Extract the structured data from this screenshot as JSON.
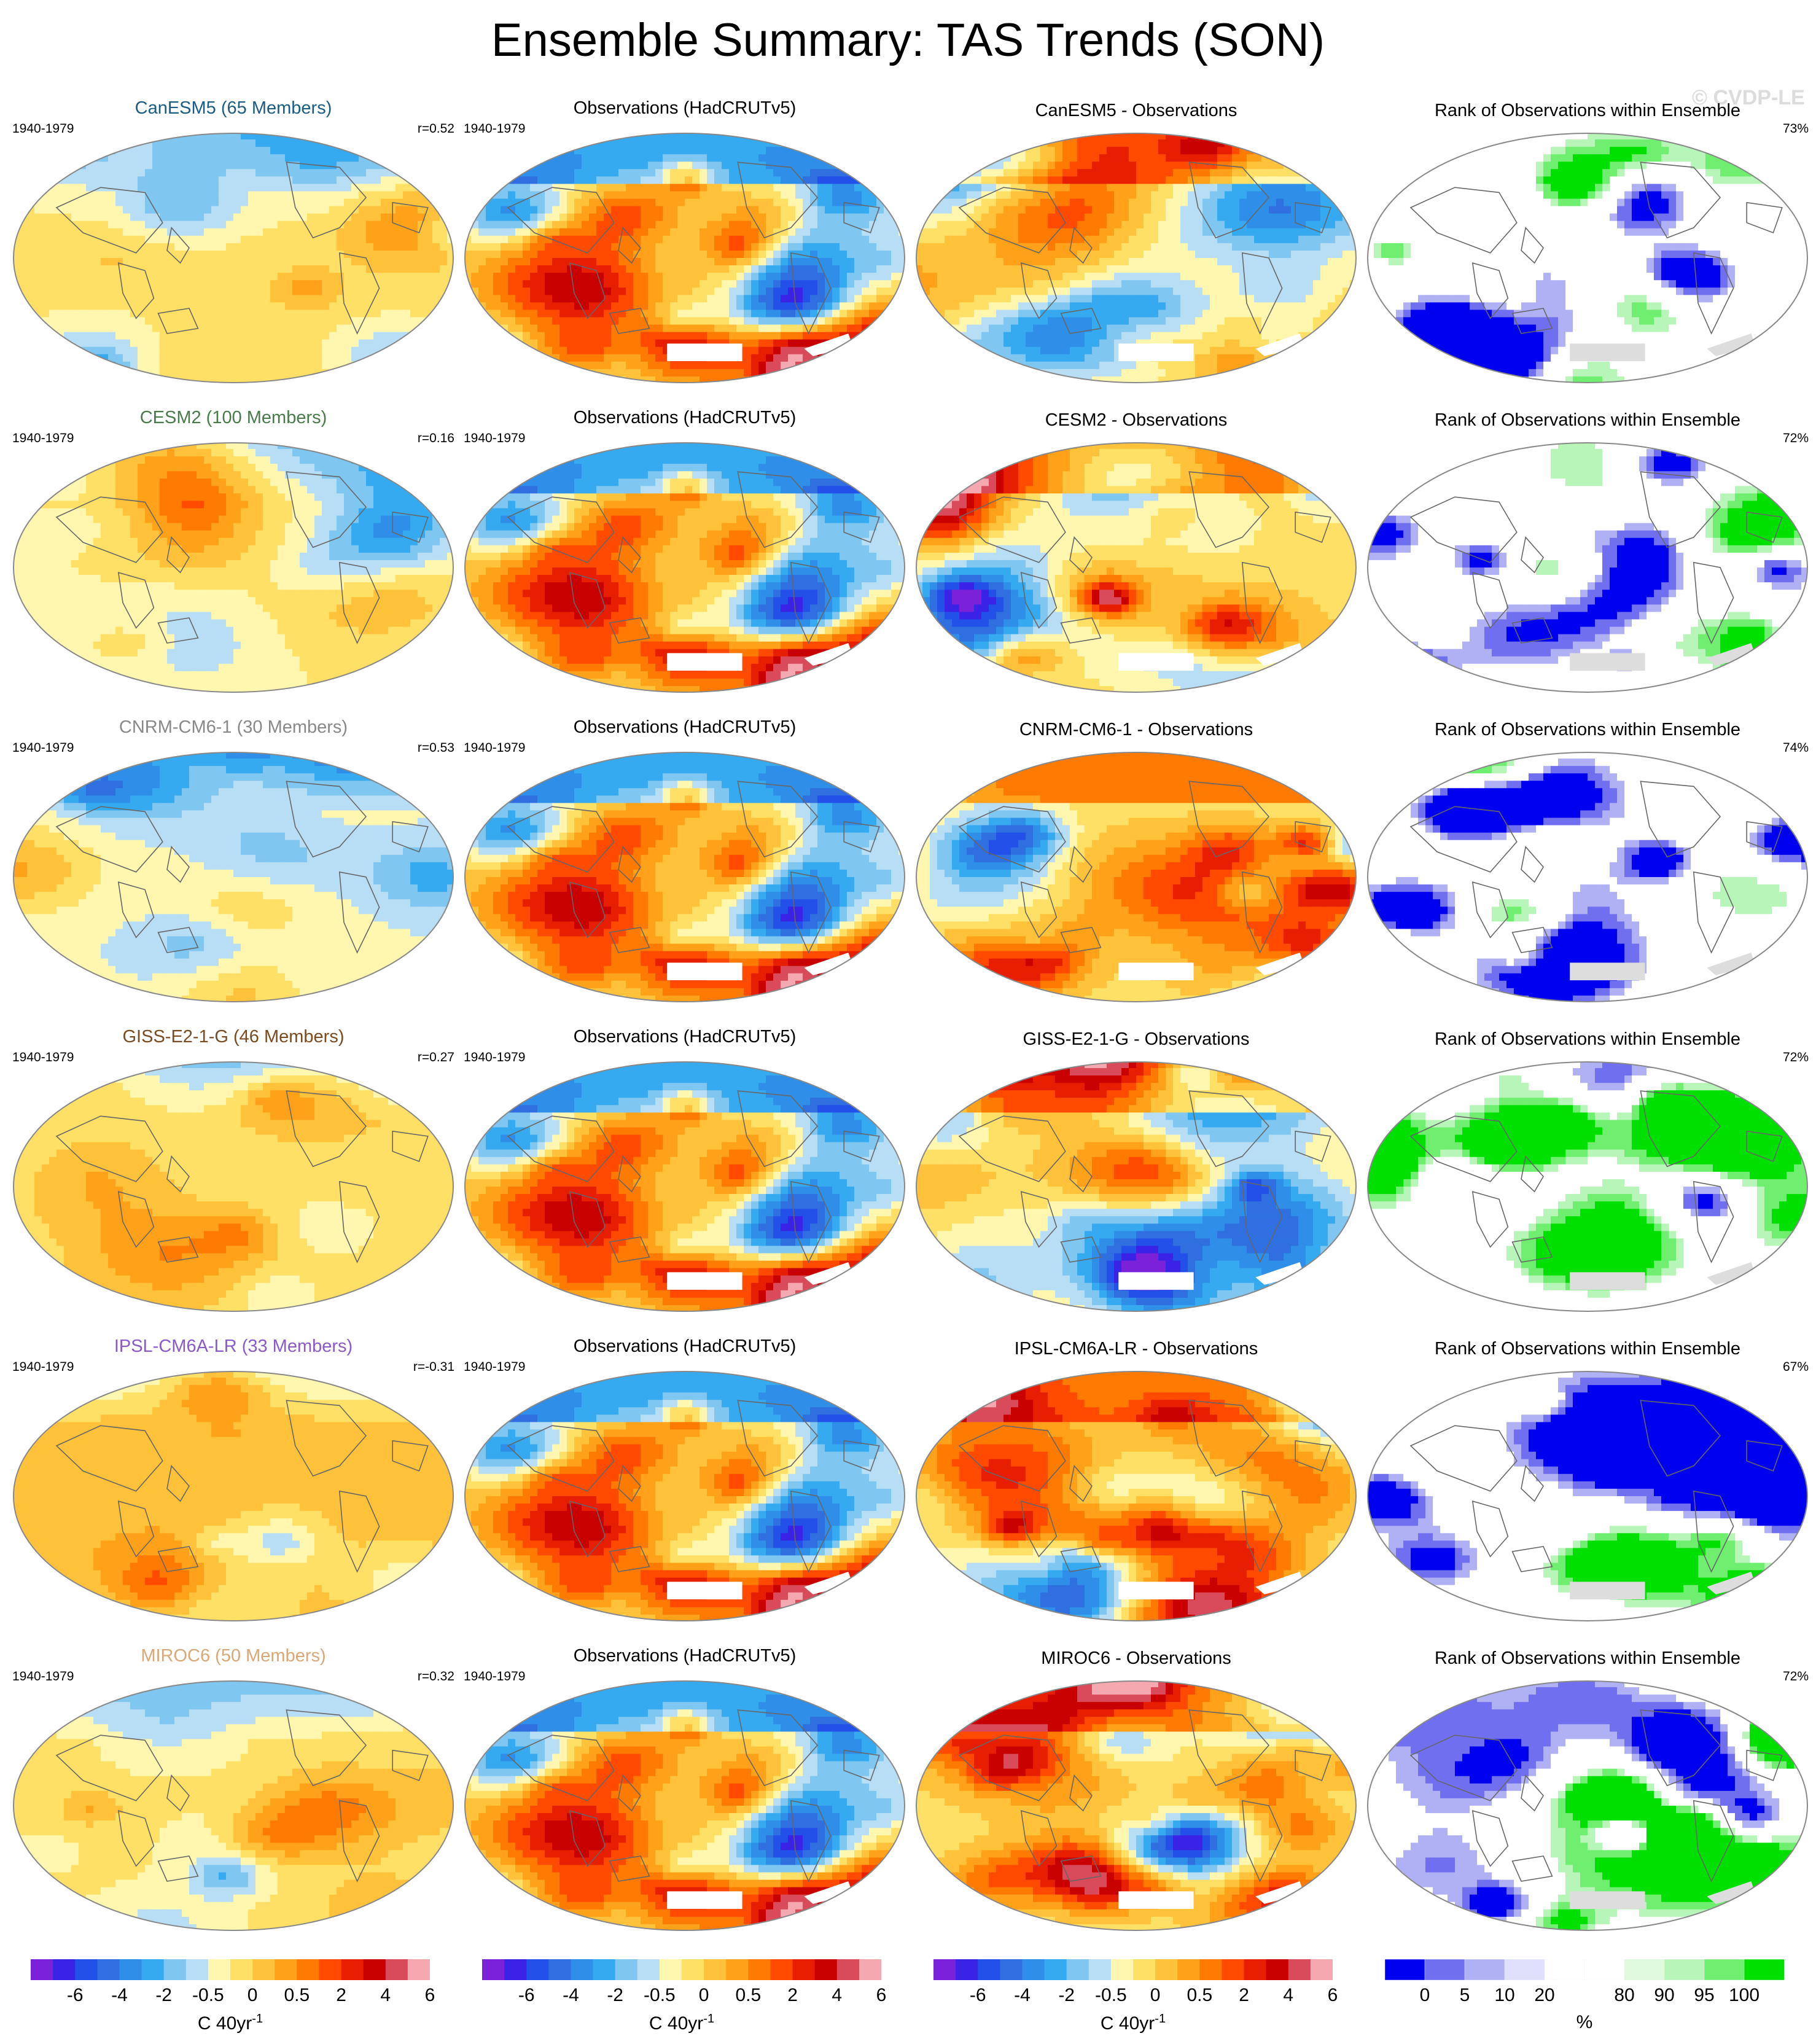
{
  "figure": {
    "title": "Ensemble Summary: TAS Trends (SON)",
    "watermark": "© CVDP-LE"
  },
  "colors": {
    "trend_scale": [
      "#7b22d9",
      "#3a22e6",
      "#2350e8",
      "#2f6fe0",
      "#2f8fe8",
      "#36aaf0",
      "#7fc6f0",
      "#b8def5",
      "#fff7b0",
      "#ffe066",
      "#ffc23a",
      "#ffa21a",
      "#ff7a00",
      "#ff4a00",
      "#e81e00",
      "#c80000",
      "#d94a5a",
      "#f5a8b0"
    ],
    "rank_scale": [
      "#0000f0",
      "#6f6ff0",
      "#b0b0f5",
      "#e0e0fa",
      "#ffffff",
      "#ffffff",
      "#e0fae0",
      "#b8f5b8",
      "#6fee6f",
      "#00e000"
    ],
    "missing": "#dddddd",
    "title_colors": {
      "canesm5": "#1a5c84",
      "cesm2": "#4a7a4a",
      "cnrm": "#888888",
      "giss": "#7a4a20",
      "ipsl": "#8a5ac8",
      "miroc": "#d8a878"
    }
  },
  "rows": [
    {
      "model_title": "CanESM5 (65 Members)",
      "period": "1940-1979",
      "r_value": "r=0.52",
      "obs_title": "Observations (HadCRUTv5)",
      "diff_title": "CanESM5 - Observations",
      "rank_title": "Rank of Observations within Ensemble",
      "rank_pct": "73%"
    },
    {
      "model_title": "CESM2 (100 Members)",
      "period": "1940-1979",
      "r_value": "r=0.16",
      "obs_title": "Observations (HadCRUTv5)",
      "diff_title": "CESM2 - Observations",
      "rank_title": "Rank of Observations within Ensemble",
      "rank_pct": "72%"
    },
    {
      "model_title": "CNRM-CM6-1 (30 Members)",
      "period": "1940-1979",
      "r_value": "r=0.53",
      "obs_title": "Observations (HadCRUTv5)",
      "diff_title": "CNRM-CM6-1 - Observations",
      "rank_title": "Rank of Observations within Ensemble",
      "rank_pct": "74%"
    },
    {
      "model_title": "GISS-E2-1-G (46 Members)",
      "period": "1940-1979",
      "r_value": "r=0.27",
      "obs_title": "Observations (HadCRUTv5)",
      "diff_title": "GISS-E2-1-G - Observations",
      "rank_title": "Rank of Observations within Ensemble",
      "rank_pct": "72%"
    },
    {
      "model_title": "IPSL-CM6A-LR (33 Members)",
      "period": "1940-1979",
      "r_value": "r=-0.31",
      "obs_title": "Observations (HadCRUTv5)",
      "diff_title": "IPSL-CM6A-LR - Observations",
      "rank_title": "Rank of Observations within Ensemble",
      "rank_pct": "67%"
    },
    {
      "model_title": "MIROC6 (50 Members)",
      "period": "1940-1979",
      "r_value": "r=0.32",
      "obs_title": "Observations (HadCRUTv5)",
      "diff_title": "MIROC6 - Observations",
      "rank_title": "Rank of Observations within Ensemble",
      "rank_pct": "72%"
    }
  ],
  "colorbars": {
    "trend_ticks": [
      "-6",
      "-4",
      "-2",
      "-0.5",
      "0",
      "0.5",
      "2",
      "4",
      "6"
    ],
    "trend_units_main": "C 40yr",
    "trend_units_exp": "-1",
    "rank_ticks": [
      "0",
      "5",
      "10",
      "20",
      "80",
      "90",
      "95",
      "100"
    ],
    "rank_units": "%"
  }
}
